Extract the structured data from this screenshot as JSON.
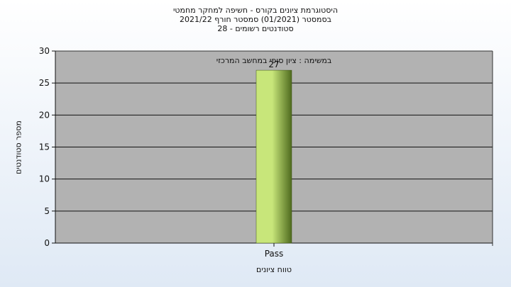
{
  "chart_data": {
    "type": "bar",
    "title_lines": [
      "היסטוגרמת ציונים בקורס - חשיפה למחקר מחמטי",
      "בסמסטר  (01/2021)  סמסטר חורף 2021/22",
      "סטודנטים רשומים - 28"
    ],
    "annotation": "במשימה : ציון סופי במחשב המרכזי",
    "categories": [
      "Pass"
    ],
    "values": [
      27
    ],
    "data_labels": [
      "27"
    ],
    "xlabel": "טווח ציונים",
    "ylabel": "מספר סטודנטים",
    "ylim": [
      0,
      30
    ],
    "yticks": [
      0,
      5,
      10,
      15,
      20,
      25,
      30
    ],
    "grid": true,
    "plot_background": "#b2b2b2",
    "bar_color_light": "#c8e67a",
    "bar_color_dark": "#4e6a1e"
  }
}
